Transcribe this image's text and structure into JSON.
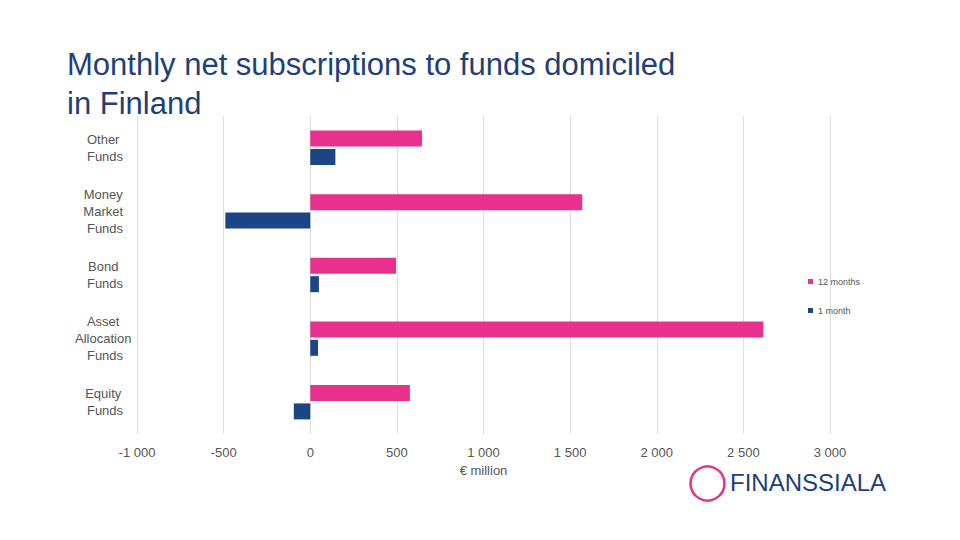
{
  "chart_data": {
    "type": "bar",
    "title": "Monthly net subscriptions to funds domiciled in Finland",
    "orientation": "horizontal",
    "categories": [
      "Other Funds",
      "Money Market Funds",
      "Bond Funds",
      "Asset Allocation Funds",
      "Equity Funds"
    ],
    "series": [
      {
        "name": "12 months",
        "color": "#e8308c",
        "values": [
          645,
          1570,
          495,
          2615,
          575
        ]
      },
      {
        "name": "1 month",
        "color": "#1c4585",
        "values": [
          145,
          -490,
          50,
          45,
          -95
        ]
      }
    ],
    "xlabel": "€ million",
    "xlim": [
      -1000,
      3000
    ],
    "xticks": [
      {
        "value": -1000,
        "label": "-1 000"
      },
      -500,
      0,
      500,
      {
        "value": 1000,
        "label": "1 000"
      },
      {
        "value": 1500,
        "label": "1 500"
      },
      {
        "value": 2000,
        "label": "2 000"
      },
      {
        "value": 2500,
        "label": "2 500"
      },
      {
        "value": 3000,
        "label": "3 000"
      }
    ],
    "grid": true,
    "legend": "right",
    "annotations": [
      "FINANSSIALA"
    ]
  }
}
